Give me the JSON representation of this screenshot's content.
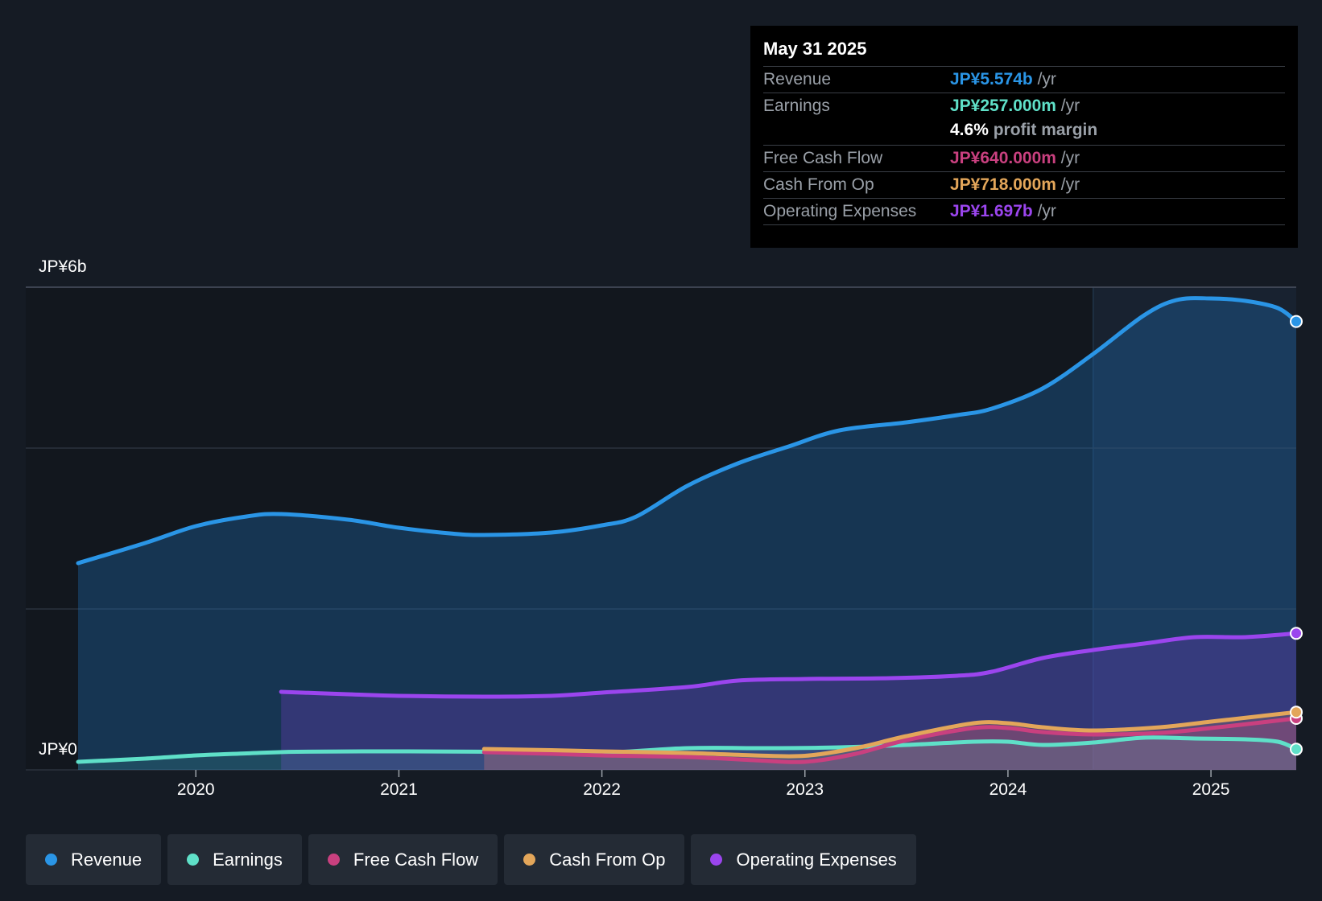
{
  "tooltip": {
    "date": "May 31 2025",
    "revenue": {
      "label": "Revenue",
      "value": "JP¥5.574b",
      "unit": "/yr"
    },
    "earnings": {
      "label": "Earnings",
      "value": "JP¥257.000m",
      "unit": "/yr"
    },
    "margin": {
      "value": "4.6%",
      "text": "profit margin"
    },
    "fcf": {
      "label": "Free Cash Flow",
      "value": "JP¥640.000m",
      "unit": "/yr"
    },
    "cfo": {
      "label": "Cash From Op",
      "value": "JP¥718.000m",
      "unit": "/yr"
    },
    "opex": {
      "label": "Operating Expenses",
      "value": "JP¥1.697b",
      "unit": "/yr"
    }
  },
  "colors": {
    "revenue": "#2a95e6",
    "earnings": "#5fe0c8",
    "fcf": "#c9407f",
    "cfo": "#e3a65a",
    "opex": "#9b45ee"
  },
  "chart_data": {
    "type": "area",
    "title": "",
    "xlabel": "",
    "ylabel": "",
    "y_axis_labels": {
      "top": "JP¥6b",
      "bottom": "JP¥0"
    },
    "ylim": [
      0,
      6000
    ],
    "xlim": [
      2019.42,
      2025.42
    ],
    "xticks": [
      "2020",
      "2021",
      "2022",
      "2023",
      "2024",
      "2025"
    ],
    "highlight_from": 2024.42,
    "series": [
      {
        "name": "Revenue",
        "key": "revenue",
        "unit": "JP¥m",
        "x": [
          2019.42,
          2019.75,
          2020.0,
          2020.25,
          2020.42,
          2020.75,
          2021.0,
          2021.25,
          2021.42,
          2021.75,
          2022.0,
          2022.17,
          2022.42,
          2022.67,
          2022.92,
          2023.17,
          2023.5,
          2023.75,
          2023.92,
          2024.17,
          2024.42,
          2024.67,
          2024.83,
          2025.0,
          2025.17,
          2025.33,
          2025.42
        ],
        "values": [
          2570,
          2820,
          3030,
          3150,
          3180,
          3110,
          3010,
          2940,
          2920,
          2950,
          3040,
          3150,
          3530,
          3810,
          4020,
          4220,
          4320,
          4410,
          4490,
          4740,
          5170,
          5650,
          5840,
          5860,
          5830,
          5740,
          5574
        ]
      },
      {
        "name": "Earnings",
        "key": "earnings",
        "unit": "JP¥m",
        "x": [
          2019.42,
          2019.75,
          2020.0,
          2020.25,
          2020.5,
          2021.0,
          2021.5,
          2022.0,
          2022.42,
          2022.83,
          2023.17,
          2023.5,
          2023.83,
          2024.0,
          2024.17,
          2024.42,
          2024.67,
          2024.92,
          2025.17,
          2025.33,
          2025.42
        ],
        "values": [
          100,
          140,
          180,
          205,
          225,
          230,
          225,
          215,
          270,
          270,
          280,
          310,
          350,
          350,
          310,
          340,
          400,
          390,
          380,
          350,
          257
        ]
      },
      {
        "name": "Free Cash Flow",
        "key": "fcf",
        "unit": "JP¥m",
        "x": [
          2021.42,
          2021.75,
          2022.0,
          2022.42,
          2022.75,
          2023.0,
          2023.25,
          2023.5,
          2023.83,
          2024.0,
          2024.17,
          2024.42,
          2024.75,
          2025.0,
          2025.25,
          2025.42
        ],
        "values": [
          220,
          200,
          180,
          160,
          120,
          100,
          200,
          370,
          520,
          520,
          470,
          440,
          460,
          520,
          590,
          640
        ]
      },
      {
        "name": "Cash From Op",
        "key": "cfo",
        "unit": "JP¥m",
        "x": [
          2021.42,
          2021.75,
          2022.0,
          2022.42,
          2022.75,
          2023.0,
          2023.25,
          2023.5,
          2023.83,
          2024.0,
          2024.17,
          2024.42,
          2024.75,
          2025.0,
          2025.25,
          2025.42
        ],
        "values": [
          260,
          245,
          230,
          210,
          180,
          175,
          270,
          420,
          580,
          580,
          530,
          490,
          530,
          600,
          670,
          718
        ]
      },
      {
        "name": "Operating Expenses",
        "key": "opex",
        "unit": "JP¥m",
        "x": [
          2020.42,
          2020.75,
          2021.0,
          2021.42,
          2021.75,
          2022.0,
          2022.42,
          2022.67,
          2023.0,
          2023.42,
          2023.75,
          2023.92,
          2024.17,
          2024.42,
          2024.67,
          2024.92,
          2025.17,
          2025.42
        ],
        "values": [
          970,
          940,
          920,
          910,
          920,
          960,
          1030,
          1110,
          1130,
          1140,
          1170,
          1220,
          1390,
          1490,
          1570,
          1650,
          1650,
          1697
        ]
      }
    ]
  },
  "legend": [
    "Revenue",
    "Earnings",
    "Free Cash Flow",
    "Cash From Op",
    "Operating Expenses"
  ]
}
